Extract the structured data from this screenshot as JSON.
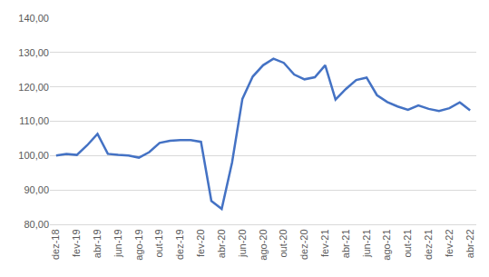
{
  "chart_data": {
    "type": "line",
    "categories": [
      "dez-18",
      null,
      "fev-19",
      null,
      "abr-19",
      null,
      "jun-19",
      null,
      "ago-19",
      null,
      "out-19",
      null,
      "dez-19",
      null,
      "fev-20",
      null,
      "abr-20",
      null,
      "jun-20",
      null,
      "ago-20",
      null,
      "out-20",
      null,
      "dez-20",
      null,
      "fev-21",
      null,
      "abr-21",
      null,
      "jun-21",
      null,
      "ago-21",
      null,
      "out-21",
      null,
      "dez-21",
      null,
      "fev-22",
      null,
      "abr-22"
    ],
    "values": [
      100.0,
      100.5,
      100.2,
      103.0,
      106.3,
      100.5,
      100.2,
      100.0,
      99.4,
      101.0,
      103.7,
      104.3,
      104.5,
      104.5,
      104.0,
      86.8,
      84.5,
      98.0,
      116.5,
      123.0,
      126.3,
      128.2,
      127.0,
      123.6,
      122.2,
      122.8,
      126.3,
      116.3,
      119.4,
      122.0,
      122.7,
      117.6,
      115.6,
      114.3,
      113.3,
      114.6,
      113.6,
      113.0,
      113.8,
      115.5,
      113.2
    ],
    "color": "#4472c4",
    "ylim": [
      80,
      140
    ],
    "yticks": [
      {
        "value": 80,
        "label": "80,00"
      },
      {
        "value": 90,
        "label": "90,00"
      },
      {
        "value": 100,
        "label": "100,00"
      },
      {
        "value": 110,
        "label": "110,00"
      },
      {
        "value": 120,
        "label": "120,00"
      },
      {
        "value": 130,
        "label": "130,00"
      },
      {
        "value": 140,
        "label": "140,00"
      }
    ],
    "grid": true
  }
}
